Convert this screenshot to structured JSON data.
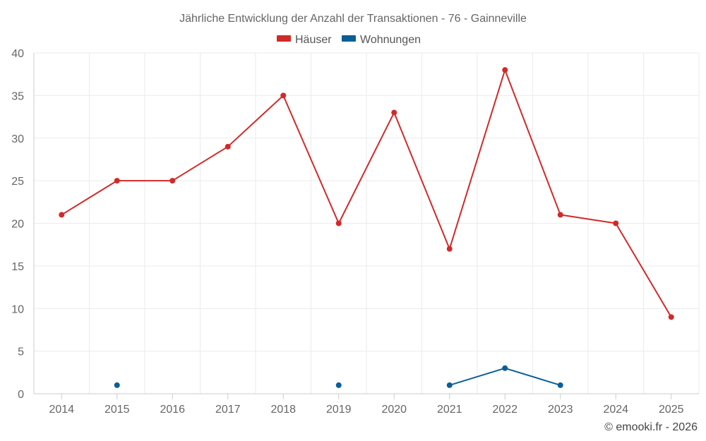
{
  "chart_data": {
    "type": "line",
    "title": "Jährliche Entwicklung der Anzahl der Transaktionen - 76 - Gainneville",
    "categories": [
      "2014",
      "2015",
      "2016",
      "2017",
      "2018",
      "2019",
      "2020",
      "2021",
      "2022",
      "2023",
      "2024",
      "2025"
    ],
    "ylim": [
      0,
      40
    ],
    "yticks": [
      0,
      5,
      10,
      15,
      20,
      25,
      30,
      35,
      40
    ],
    "grid": true,
    "legend_position": "top-center",
    "series": [
      {
        "name": "Häuser",
        "color": "#d12a2a",
        "values": [
          21,
          25,
          25,
          29,
          35,
          20,
          33,
          17,
          38,
          21,
          20,
          9
        ]
      },
      {
        "name": "Wohnungen",
        "color": "#0b5f96",
        "values": [
          null,
          1,
          null,
          null,
          null,
          1,
          null,
          1,
          3,
          1,
          null,
          null
        ]
      }
    ]
  },
  "credit": "© emooki.fr - 2026"
}
